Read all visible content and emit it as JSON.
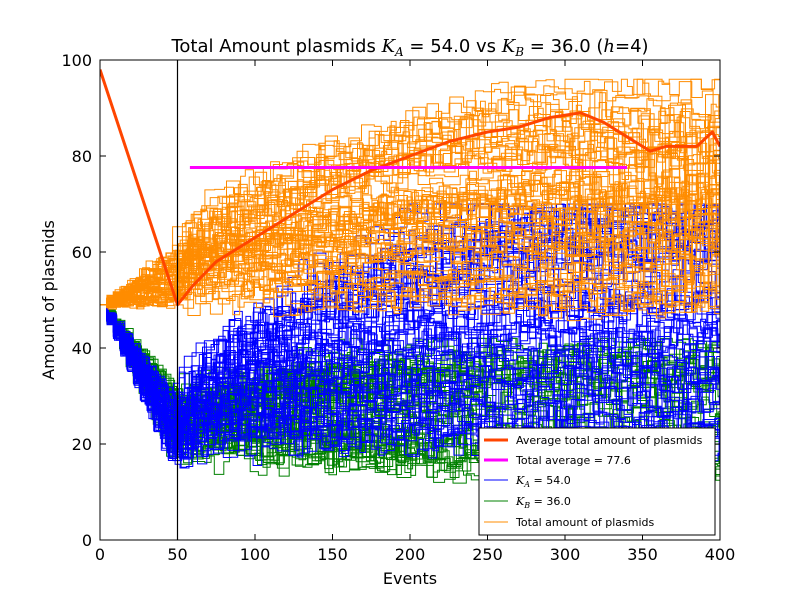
{
  "chart_data": {
    "type": "line",
    "title": "Total Amount plasmids K_A = 54.0 vs K_B = 36.0 (h=4)",
    "title_parts": {
      "prefix": "Total Amount plasmids ",
      "ka_var": "K",
      "ka_sub": "A",
      "ka_value": " = 54.0 vs ",
      "kb_var": "K",
      "kb_sub": "B",
      "kb_value": " = 36.0 (",
      "h_var": "h",
      "h_value": "=4)"
    },
    "xlabel": "Events",
    "ylabel": "Amount of plasmids",
    "xlim": [
      0,
      400
    ],
    "ylim": [
      0,
      100
    ],
    "xticks": [
      "0",
      "50",
      "100",
      "150",
      "200",
      "250",
      "300",
      "350",
      "400"
    ],
    "yticks": [
      "0",
      "20",
      "40",
      "60",
      "80",
      "100"
    ],
    "grid": false,
    "vertical_line_x": 50,
    "legend_position": "lower-right",
    "colors": {
      "average_total": "#ff4500",
      "total_average": "#ff00ff",
      "ka": "#0000ff",
      "kb": "#008000",
      "total": "#ff8c00"
    },
    "series_legend": [
      {
        "key": "average_total",
        "label": "Average total amount of plasmids"
      },
      {
        "key": "total_average",
        "label": "Total average = 77.6"
      },
      {
        "key": "ka",
        "label_var": "K",
        "label_sub": "A",
        "label_value": " = 54.0"
      },
      {
        "key": "kb",
        "label_var": "K",
        "label_sub": "B",
        "label_value": " = 36.0"
      },
      {
        "key": "total",
        "label": "Total amount of plasmids"
      }
    ],
    "average_total_curve": {
      "x": [
        0,
        50,
        60,
        75,
        100,
        125,
        150,
        175,
        200,
        225,
        250,
        270,
        290,
        310,
        325,
        340,
        355,
        365,
        375,
        385,
        395,
        400
      ],
      "y": [
        98,
        49,
        53,
        58,
        63,
        68,
        73,
        77,
        80,
        83,
        85,
        86,
        88,
        89,
        87,
        84,
        81,
        82,
        82,
        82,
        85,
        82
      ]
    },
    "total_average_line": {
      "x": [
        58,
        340
      ],
      "y": [
        77.6,
        77.6
      ]
    },
    "simulation_envelopes": {
      "total": {
        "start": 49,
        "low_at_50": 49,
        "high_late": 96,
        "low_late": 48,
        "count": 70
      },
      "ka": {
        "start": 49,
        "low_at_50": 16,
        "high_late": 70,
        "low_late": 20,
        "count": 70
      },
      "kb": {
        "start": 49,
        "low_at_50": 18,
        "high_late": 42,
        "low_late": 15,
        "count": 70
      }
    }
  }
}
